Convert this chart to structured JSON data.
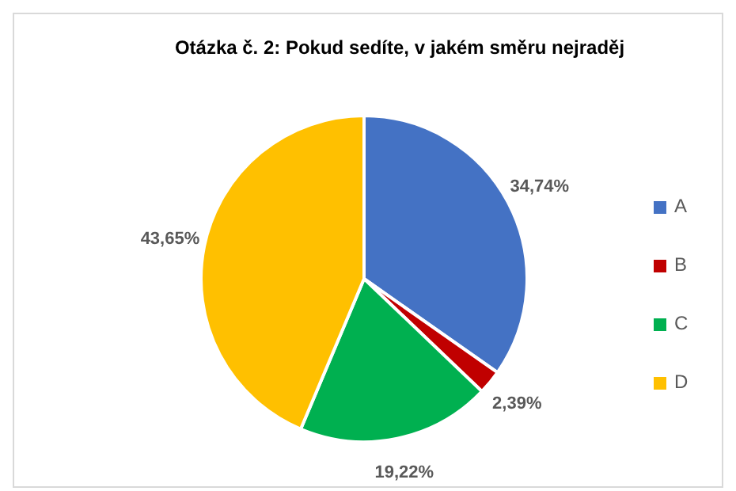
{
  "chart_data": {
    "type": "pie",
    "title": "Otázka č. 2: Pokud sedíte, v jakém směru nejraděj",
    "categories": [
      "A",
      "B",
      "C",
      "D"
    ],
    "values": [
      34.74,
      2.39,
      19.22,
      43.65
    ],
    "colors": [
      "#4472c4",
      "#c00000",
      "#00b050",
      "#ffc000"
    ],
    "value_labels": [
      "34,74%",
      "2,39%",
      "19,22%",
      "43,65%"
    ],
    "legend": "right"
  }
}
